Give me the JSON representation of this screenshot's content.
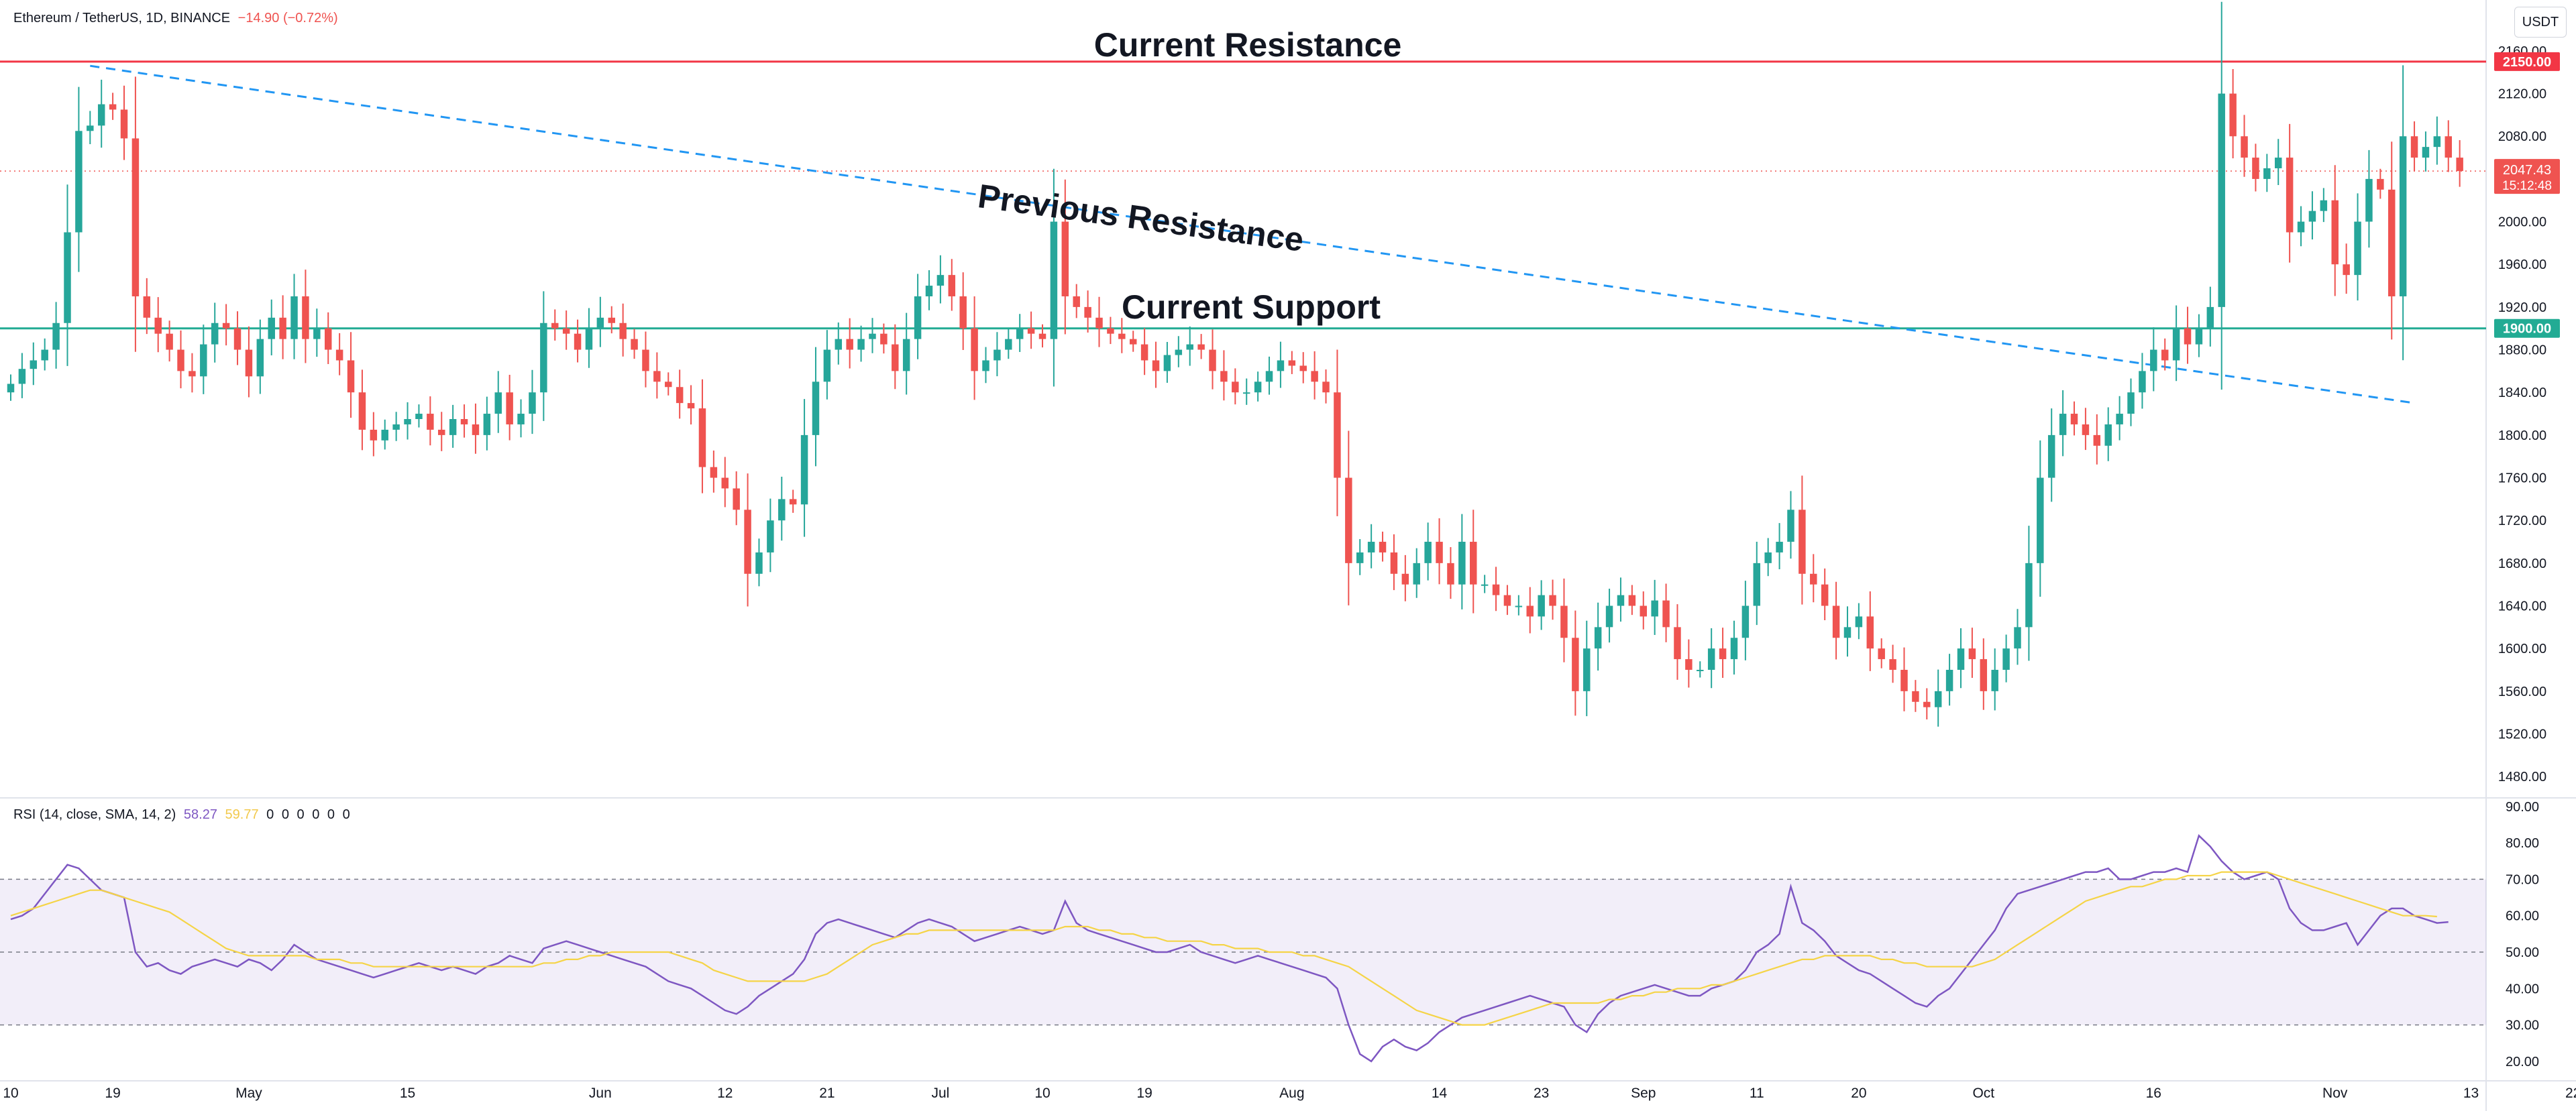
{
  "header": {
    "symbol": "Ethereum / TetherUS, 1D, BINANCE",
    "change": "−14.90 (−0.72%)",
    "currency": "USDT"
  },
  "colors": {
    "up": "#26a69a",
    "down": "#ef5350",
    "resistance": "#f23645",
    "support": "#22ab94",
    "trend": "#2196f3",
    "rsi": "#7e57c2",
    "rsi_ma": "#f5d447"
  },
  "chart_data": [
    {
      "type": "candlestick",
      "symbol": "Ethereum / TetherUS",
      "interval": "1D",
      "exchange": "BINANCE",
      "ylim": [
        1460,
        2170
      ],
      "y_ticks": [
        "2160.00",
        "2120.00",
        "2080.00",
        "2040.00",
        "2000.00",
        "1960.00",
        "1920.00",
        "1880.00",
        "1840.00",
        "1800.00",
        "1760.00",
        "1720.00",
        "1680.00",
        "1640.00",
        "1600.00",
        "1560.00",
        "1520.00",
        "1480.00"
      ],
      "x_ticks": [
        {
          "day": 0,
          "label": "10"
        },
        {
          "day": 9,
          "label": "19"
        },
        {
          "day": 21,
          "label": "May"
        },
        {
          "day": 35,
          "label": "15"
        },
        {
          "day": 52,
          "label": "Jun"
        },
        {
          "day": 63,
          "label": "12"
        },
        {
          "day": 72,
          "label": "21"
        },
        {
          "day": 82,
          "label": "Jul"
        },
        {
          "day": 91,
          "label": "10"
        },
        {
          "day": 100,
          "label": "19"
        },
        {
          "day": 113,
          "label": "Aug"
        },
        {
          "day": 126,
          "label": "14"
        },
        {
          "day": 135,
          "label": "23"
        },
        {
          "day": 144,
          "label": "Sep"
        },
        {
          "day": 154,
          "label": "11"
        },
        {
          "day": 163,
          "label": "20"
        },
        {
          "day": 174,
          "label": "Oct"
        },
        {
          "day": 189,
          "label": "16"
        },
        {
          "day": 205,
          "label": "Nov"
        },
        {
          "day": 217,
          "label": "13"
        },
        {
          "day": 226,
          "label": "22"
        }
      ],
      "ohlc_close": [
        1848,
        1862,
        1870,
        1880,
        1905,
        1990,
        2085,
        2090,
        2110,
        2105,
        2078,
        1930,
        1910,
        1895,
        1880,
        1860,
        1855,
        1885,
        1905,
        1900,
        1880,
        1855,
        1890,
        1910,
        1890,
        1930,
        1890,
        1900,
        1880,
        1870,
        1840,
        1805,
        1795,
        1805,
        1810,
        1815,
        1820,
        1805,
        1800,
        1815,
        1810,
        1800,
        1820,
        1840,
        1810,
        1820,
        1840,
        1905,
        1900,
        1895,
        1880,
        1900,
        1910,
        1905,
        1890,
        1880,
        1860,
        1850,
        1845,
        1830,
        1825,
        1770,
        1760,
        1750,
        1730,
        1670,
        1690,
        1720,
        1740,
        1735,
        1800,
        1850,
        1880,
        1890,
        1880,
        1890,
        1895,
        1885,
        1860,
        1890,
        1930,
        1940,
        1950,
        1930,
        1900,
        1860,
        1870,
        1880,
        1890,
        1900,
        1895,
        1890,
        2000,
        1930,
        1920,
        1910,
        1900,
        1895,
        1890,
        1885,
        1870,
        1860,
        1875,
        1880,
        1885,
        1880,
        1860,
        1850,
        1840,
        1840,
        1850,
        1860,
        1870,
        1865,
        1860,
        1850,
        1840,
        1760,
        1680,
        1690,
        1700,
        1690,
        1670,
        1660,
        1680,
        1700,
        1680,
        1660,
        1700,
        1660,
        1660,
        1650,
        1640,
        1640,
        1630,
        1650,
        1640,
        1610,
        1560,
        1600,
        1620,
        1640,
        1650,
        1640,
        1630,
        1645,
        1620,
        1590,
        1580,
        1580,
        1600,
        1590,
        1610,
        1640,
        1680,
        1690,
        1700,
        1730,
        1670,
        1660,
        1640,
        1610,
        1620,
        1630,
        1600,
        1590,
        1580,
        1560,
        1550,
        1545,
        1560,
        1580,
        1600,
        1590,
        1560,
        1580,
        1600,
        1620,
        1680,
        1760,
        1800,
        1820,
        1810,
        1800,
        1790,
        1810,
        1820,
        1840,
        1860,
        1880,
        1870,
        1900,
        1885,
        1900,
        1920,
        2120,
        2080,
        2060,
        2040,
        2050,
        2060,
        1990,
        2000,
        2010,
        2020,
        1960,
        1950,
        2000,
        2040,
        2030,
        1930,
        2080,
        2060,
        2070,
        2080,
        2060,
        2047.43
      ],
      "levels": [
        {
          "name": "Current Resistance",
          "price": 2150.0,
          "label": "2150.00"
        },
        {
          "name": "Current Support",
          "price": 1900.0,
          "label": "1900.00"
        }
      ],
      "trendline": {
        "name": "Previous Resistance",
        "start": {
          "day": 7,
          "price": 2146
        },
        "end": {
          "day": 212,
          "price": 1830
        }
      },
      "last_price": {
        "value": "2047.43",
        "countdown": "15:12:48"
      },
      "annotations": [
        "Current Resistance",
        "Previous Resistance",
        "Current Support"
      ]
    },
    {
      "type": "line",
      "name": "RSI (14, close, SMA, 14, 2)",
      "ylim": [
        15,
        92
      ],
      "y_ticks": [
        "90.00",
        "80.00",
        "70.00",
        "60.00",
        "50.00",
        "40.00",
        "30.00",
        "20.00"
      ],
      "bands": {
        "upper": 70,
        "middle": 50,
        "lower": 30
      },
      "legend_values": {
        "rsi": "58.27",
        "ma": "59.77",
        "extra": [
          "0",
          "0",
          "0",
          "0",
          "0",
          "0"
        ]
      },
      "series": [
        {
          "name": "RSI",
          "values": [
            59,
            60,
            62,
            66,
            70,
            74,
            73,
            70,
            67,
            66,
            65,
            50,
            46,
            47,
            45,
            44,
            46,
            47,
            48,
            47,
            46,
            48,
            47,
            45,
            48,
            52,
            50,
            48,
            47,
            46,
            45,
            44,
            43,
            44,
            45,
            46,
            47,
            46,
            45,
            46,
            45,
            44,
            46,
            47,
            49,
            48,
            47,
            51,
            52,
            53,
            52,
            51,
            50,
            49,
            48,
            47,
            46,
            44,
            42,
            41,
            40,
            38,
            36,
            34,
            33,
            35,
            38,
            40,
            42,
            44,
            48,
            55,
            58,
            59,
            58,
            57,
            56,
            55,
            54,
            56,
            58,
            59,
            58,
            57,
            55,
            53,
            54,
            55,
            56,
            57,
            56,
            55,
            56,
            64,
            58,
            56,
            55,
            54,
            53,
            52,
            51,
            50,
            50,
            51,
            52,
            50,
            49,
            48,
            47,
            48,
            49,
            48,
            47,
            46,
            45,
            44,
            43,
            40,
            30,
            22,
            20,
            24,
            26,
            24,
            23,
            25,
            28,
            30,
            32,
            33,
            34,
            35,
            36,
            37,
            38,
            37,
            36,
            35,
            30,
            28,
            33,
            36,
            38,
            39,
            40,
            41,
            40,
            39,
            38,
            38,
            40,
            41,
            42,
            45,
            50,
            52,
            55,
            68,
            58,
            56,
            53,
            49,
            47,
            45,
            44,
            42,
            40,
            38,
            36,
            35,
            38,
            40,
            44,
            48,
            52,
            56,
            62,
            66,
            67,
            68,
            69,
            70,
            71,
            72,
            72,
            73,
            70,
            70,
            71,
            72,
            72,
            73,
            72,
            82,
            79,
            75,
            72,
            70,
            71,
            72,
            70,
            62,
            58,
            56,
            56,
            57,
            58,
            52,
            56,
            60,
            62,
            62,
            60,
            59,
            58,
            58.27
          ]
        },
        {
          "name": "RSI-based MA",
          "values": [
            60,
            61,
            62,
            63,
            64,
            65,
            66,
            67,
            67,
            66,
            65,
            64,
            63,
            62,
            61,
            59,
            57,
            55,
            53,
            51,
            50,
            49,
            49,
            49,
            49,
            49,
            49,
            48,
            48,
            48,
            47,
            47,
            46,
            46,
            46,
            46,
            46,
            46,
            46,
            46,
            46,
            46,
            46,
            46,
            46,
            46,
            46,
            47,
            47,
            48,
            48,
            49,
            49,
            50,
            50,
            50,
            50,
            50,
            50,
            49,
            48,
            47,
            45,
            44,
            43,
            42,
            42,
            42,
            42,
            42,
            42,
            43,
            44,
            46,
            48,
            50,
            52,
            53,
            54,
            55,
            55,
            56,
            56,
            56,
            56,
            56,
            56,
            56,
            56,
            56,
            56,
            56,
            56,
            57,
            57,
            57,
            56,
            56,
            55,
            55,
            54,
            54,
            53,
            53,
            53,
            53,
            52,
            52,
            51,
            51,
            51,
            50,
            50,
            50,
            49,
            49,
            48,
            47,
            46,
            44,
            42,
            40,
            38,
            36,
            34,
            33,
            32,
            31,
            30,
            30,
            30,
            31,
            32,
            33,
            34,
            35,
            36,
            36,
            36,
            36,
            36,
            37,
            37,
            38,
            38,
            39,
            39,
            40,
            40,
            40,
            41,
            41,
            42,
            43,
            44,
            45,
            46,
            47,
            48,
            48,
            49,
            49,
            49,
            49,
            49,
            48,
            48,
            47,
            47,
            46,
            46,
            46,
            46,
            46,
            47,
            48,
            50,
            52,
            54,
            56,
            58,
            60,
            62,
            64,
            65,
            66,
            67,
            68,
            68,
            69,
            70,
            70,
            71,
            71,
            71,
            72,
            72,
            72,
            72,
            72,
            71,
            70,
            69,
            68,
            67,
            66,
            65,
            64,
            63,
            62,
            61,
            60,
            60,
            60,
            59.77
          ]
        }
      ]
    }
  ]
}
